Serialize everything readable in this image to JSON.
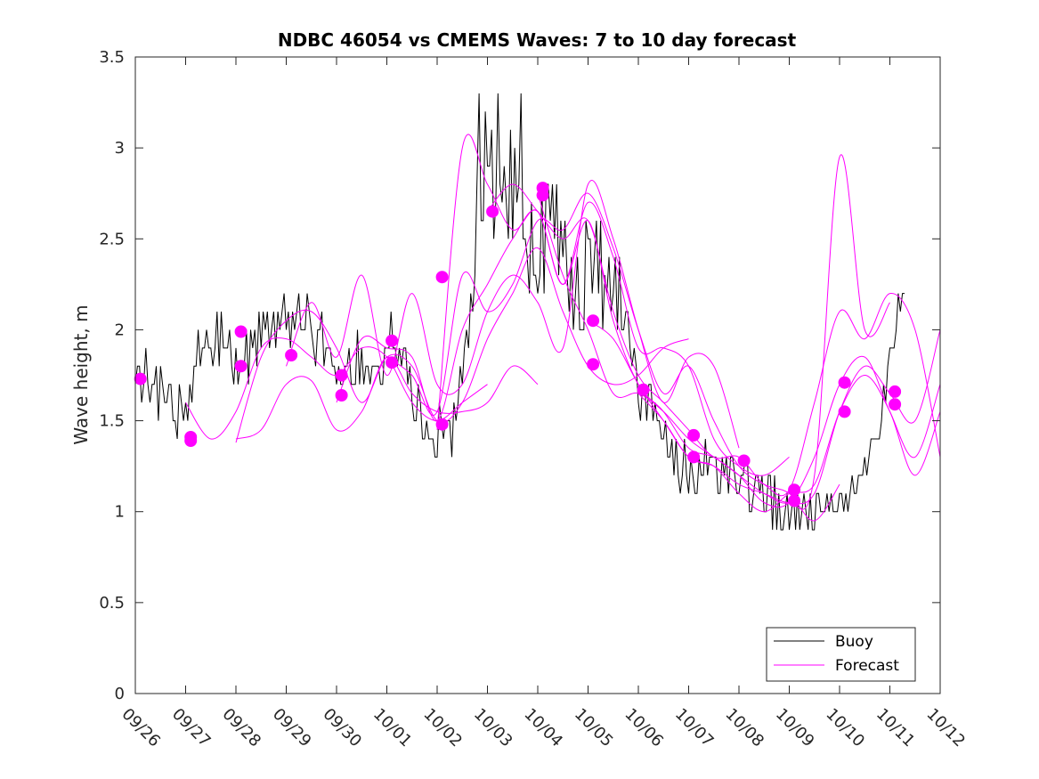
{
  "chart_data": {
    "type": "line",
    "title": "NDBC 46054 vs CMEMS Waves: 7 to 10 day forecast",
    "xlabel": "",
    "ylabel": "Wave height, m",
    "xlim": [
      0,
      16
    ],
    "ylim": [
      0,
      3.5
    ],
    "x_tick_labels": [
      "09/26",
      "09/27",
      "09/28",
      "09/29",
      "09/30",
      "10/01",
      "10/02",
      "10/03",
      "10/04",
      "10/05",
      "10/06",
      "10/07",
      "10/08",
      "10/09",
      "10/10",
      "10/11",
      "10/12"
    ],
    "y_ticks": [
      "0",
      "0.5",
      "1",
      "1.5",
      "2",
      "2.5",
      "3",
      "3.5"
    ],
    "x_unit": "days since 09/26",
    "colors": {
      "buoy": "#000000",
      "forecast": "#ff00ff",
      "axis": "#262626"
    },
    "legend": {
      "position": "bottom-right",
      "entries": [
        {
          "label": "Buoy",
          "color": "#000000"
        },
        {
          "label": "Forecast",
          "color": "#ff00ff"
        }
      ]
    },
    "buoy_control_points": [
      [
        0.0,
        1.7
      ],
      [
        0.3,
        1.8
      ],
      [
        0.5,
        1.65
      ],
      [
        0.8,
        1.55
      ],
      [
        1.0,
        1.5
      ],
      [
        1.15,
        1.8
      ],
      [
        1.3,
        1.9
      ],
      [
        1.5,
        1.95
      ],
      [
        1.8,
        1.9
      ],
      [
        2.0,
        1.85
      ],
      [
        2.15,
        1.75
      ],
      [
        2.3,
        1.9
      ],
      [
        2.6,
        2.0
      ],
      [
        3.0,
        2.05
      ],
      [
        3.3,
        2.1
      ],
      [
        3.6,
        1.95
      ],
      [
        3.9,
        1.9
      ],
      [
        4.0,
        1.7
      ],
      [
        4.2,
        1.8
      ],
      [
        4.5,
        1.85
      ],
      [
        4.8,
        1.7
      ],
      [
        5.0,
        2.0
      ],
      [
        5.2,
        1.85
      ],
      [
        5.4,
        1.75
      ],
      [
        5.6,
        1.6
      ],
      [
        5.8,
        1.5
      ],
      [
        6.0,
        1.45
      ],
      [
        6.2,
        1.5
      ],
      [
        6.4,
        1.6
      ],
      [
        6.5,
        1.8
      ],
      [
        6.65,
        2.0
      ],
      [
        6.8,
        2.6
      ],
      [
        7.0,
        2.9
      ],
      [
        7.2,
        2.8
      ],
      [
        7.4,
        2.7
      ],
      [
        7.6,
        2.8
      ],
      [
        7.8,
        2.6
      ],
      [
        8.0,
        2.45
      ],
      [
        8.2,
        2.6
      ],
      [
        8.4,
        2.45
      ],
      [
        8.6,
        2.35
      ],
      [
        8.8,
        2.3
      ],
      [
        9.0,
        2.35
      ],
      [
        9.2,
        2.3
      ],
      [
        9.4,
        2.2
      ],
      [
        9.6,
        2.3
      ],
      [
        9.8,
        2.05
      ],
      [
        10.0,
        1.7
      ],
      [
        10.2,
        1.6
      ],
      [
        10.4,
        1.5
      ],
      [
        10.5,
        1.35
      ],
      [
        10.7,
        1.3
      ],
      [
        10.9,
        1.25
      ],
      [
        11.0,
        1.2
      ],
      [
        11.2,
        1.2
      ],
      [
        11.4,
        1.3
      ],
      [
        11.6,
        1.25
      ],
      [
        11.8,
        1.2
      ],
      [
        12.0,
        1.2
      ],
      [
        12.2,
        1.15
      ],
      [
        12.4,
        1.1
      ],
      [
        12.6,
        1.05
      ],
      [
        12.8,
        1.0
      ],
      [
        13.0,
        1.0
      ],
      [
        13.2,
        1.05
      ],
      [
        13.4,
        1.05
      ],
      [
        13.6,
        1.0
      ],
      [
        13.8,
        1.0
      ],
      [
        14.0,
        1.05
      ],
      [
        14.2,
        1.1
      ],
      [
        14.4,
        1.2
      ],
      [
        14.6,
        1.3
      ],
      [
        14.8,
        1.5
      ],
      [
        15.0,
        1.8
      ],
      [
        15.1,
        2.0
      ],
      [
        15.2,
        2.15
      ],
      [
        15.3,
        2.2
      ]
    ],
    "forecast_series": [
      {
        "name": "Forecast 1",
        "x": [
          1.0,
          1.5,
          2.0,
          2.5,
          3.0,
          3.5,
          4.0,
          4.5,
          5.0,
          5.5,
          6.0,
          6.5,
          7.0
        ],
        "y": [
          1.6,
          1.4,
          1.55,
          1.9,
          1.95,
          1.85,
          1.75,
          1.9,
          1.85,
          1.6,
          1.5,
          1.6,
          1.7
        ]
      },
      {
        "name": "Forecast 2",
        "x": [
          2.0,
          2.5,
          3.0,
          3.5,
          4.0,
          4.5,
          5.0,
          5.5,
          6.0,
          6.5,
          7.0,
          7.5,
          8.0
        ],
        "y": [
          1.4,
          1.45,
          1.7,
          1.72,
          1.45,
          1.55,
          1.85,
          1.65,
          1.55,
          1.55,
          1.6,
          1.8,
          1.7
        ]
      },
      {
        "name": "Forecast 3",
        "x": [
          2.0,
          2.5,
          3.0,
          3.5,
          4.0,
          4.5,
          5.0,
          5.5,
          6.0,
          6.5,
          7.0,
          7.5,
          8.0,
          8.5,
          9.0,
          9.5,
          10.0,
          10.5,
          11.0
        ],
        "y": [
          1.38,
          1.85,
          2.05,
          2.1,
          1.9,
          1.6,
          1.85,
          1.8,
          1.5,
          1.6,
          1.95,
          2.2,
          2.45,
          2.1,
          1.8,
          1.7,
          1.75,
          1.9,
          1.95
        ]
      },
      {
        "name": "Forecast 4",
        "x": [
          3.0,
          3.5,
          4.0,
          4.5,
          5.0,
          5.5,
          6.0,
          6.5,
          7.0,
          7.5,
          8.0,
          8.5,
          9.0,
          9.5,
          10.0,
          10.5,
          11.0,
          11.5,
          12.0
        ],
        "y": [
          1.8,
          2.15,
          1.85,
          2.3,
          1.75,
          2.2,
          1.7,
          1.7,
          2.1,
          2.3,
          2.15,
          1.9,
          2.8,
          2.5,
          2.0,
          1.6,
          1.85,
          1.8,
          1.35
        ]
      },
      {
        "name": "Forecast 5",
        "x": [
          4.0,
          4.5,
          5.0,
          5.5,
          6.0,
          6.5,
          7.0,
          7.5,
          8.0,
          8.5,
          9.0,
          9.5,
          10.0,
          10.5,
          11.0,
          11.5,
          12.0,
          12.5,
          13.0
        ],
        "y": [
          1.6,
          1.95,
          1.9,
          1.85,
          1.5,
          2.0,
          2.25,
          2.5,
          2.65,
          2.25,
          2.7,
          2.4,
          1.9,
          1.9,
          1.8,
          1.4,
          1.25,
          1.2,
          1.3
        ]
      },
      {
        "name": "Forecast 6",
        "x": [
          5.0,
          5.5,
          6.0,
          6.5,
          7.0,
          7.5,
          8.0,
          8.5,
          9.0,
          9.5,
          10.0,
          10.5,
          11.0,
          11.5,
          12.0,
          12.5,
          13.0,
          13.5,
          14.0
        ],
        "y": [
          1.85,
          1.75,
          1.55,
          2.3,
          2.1,
          2.25,
          2.6,
          2.55,
          2.75,
          2.45,
          2.0,
          1.65,
          1.8,
          1.5,
          1.25,
          1.15,
          1.1,
          0.95,
          1.15
        ]
      },
      {
        "name": "Forecast 7",
        "x": [
          6.0,
          6.5,
          7.0,
          7.5,
          8.0,
          8.5,
          9.0,
          9.5,
          10.0,
          10.5,
          11.0,
          11.5,
          12.0,
          12.5,
          13.0,
          13.5,
          14.0,
          14.5,
          15.0
        ],
        "y": [
          1.45,
          3.0,
          2.8,
          2.55,
          2.65,
          2.25,
          2.6,
          2.05,
          1.7,
          1.55,
          1.35,
          1.3,
          1.2,
          1.1,
          1.05,
          1.2,
          2.95,
          2.0,
          2.15
        ]
      },
      {
        "name": "Forecast 8",
        "x": [
          7.0,
          7.5,
          8.0,
          8.5,
          9.0,
          9.5,
          10.0,
          10.5,
          11.0,
          11.5,
          12.0,
          12.5,
          13.0,
          13.5,
          14.0,
          14.5,
          15.0,
          15.5,
          16.0
        ],
        "y": [
          2.65,
          2.8,
          2.65,
          2.5,
          2.6,
          2.1,
          1.75,
          1.6,
          1.45,
          1.3,
          1.3,
          1.15,
          1.12,
          1.6,
          2.1,
          1.95,
          2.2,
          2.0,
          1.3
        ]
      },
      {
        "name": "Forecast 9",
        "x": [
          8.0,
          8.5,
          9.0,
          9.5,
          10.0,
          10.5,
          11.0,
          11.5,
          12.0,
          12.5,
          13.0,
          13.5,
          14.0,
          14.5,
          15.0,
          15.5,
          16.0
        ],
        "y": [
          2.75,
          2.3,
          2.0,
          1.65,
          1.65,
          1.55,
          1.4,
          1.3,
          1.2,
          1.05,
          1.05,
          1.3,
          1.7,
          1.85,
          1.55,
          1.3,
          1.7
        ]
      },
      {
        "name": "Forecast 10",
        "x": [
          9.0,
          9.5,
          10.0,
          10.5,
          11.0,
          11.5,
          12.0,
          12.5,
          13.0,
          13.5,
          14.0,
          14.5,
          15.0,
          15.5,
          16.0
        ],
        "y": [
          2.05,
          1.95,
          1.7,
          1.5,
          1.3,
          1.25,
          1.1,
          1.0,
          1.1,
          1.15,
          1.55,
          1.75,
          1.55,
          1.2,
          1.55
        ]
      },
      {
        "name": "Forecast 11",
        "x": [
          10.0,
          10.5,
          11.0,
          11.5,
          12.0,
          12.5,
          13.0,
          13.5,
          14.0,
          14.5,
          15.0,
          15.5,
          16.0
        ],
        "y": [
          1.65,
          1.5,
          1.3,
          1.25,
          1.15,
          1.1,
          1.05,
          1.1,
          1.55,
          1.8,
          1.65,
          1.5,
          2.0
        ]
      }
    ],
    "forecast_start_markers": [
      {
        "x": 0.1,
        "y": 1.73
      },
      {
        "x": 1.1,
        "y": 1.41
      },
      {
        "x": 1.1,
        "y": 1.39
      },
      {
        "x": 2.1,
        "y": 1.99
      },
      {
        "x": 2.1,
        "y": 1.8
      },
      {
        "x": 3.1,
        "y": 1.86
      },
      {
        "x": 4.1,
        "y": 1.75
      },
      {
        "x": 4.1,
        "y": 1.64
      },
      {
        "x": 5.1,
        "y": 1.94
      },
      {
        "x": 5.1,
        "y": 1.82
      },
      {
        "x": 6.1,
        "y": 2.29
      },
      {
        "x": 6.1,
        "y": 1.48
      },
      {
        "x": 7.1,
        "y": 2.65
      },
      {
        "x": 8.1,
        "y": 2.78
      },
      {
        "x": 8.1,
        "y": 2.74
      },
      {
        "x": 9.1,
        "y": 2.05
      },
      {
        "x": 9.1,
        "y": 1.81
      },
      {
        "x": 10.1,
        "y": 1.67
      },
      {
        "x": 11.1,
        "y": 1.42
      },
      {
        "x": 11.1,
        "y": 1.3
      },
      {
        "x": 12.1,
        "y": 1.28
      },
      {
        "x": 13.1,
        "y": 1.12
      },
      {
        "x": 13.1,
        "y": 1.06
      },
      {
        "x": 14.1,
        "y": 1.71
      },
      {
        "x": 14.1,
        "y": 1.55
      },
      {
        "x": 15.1,
        "y": 1.66
      },
      {
        "x": 15.1,
        "y": 1.59
      }
    ]
  }
}
